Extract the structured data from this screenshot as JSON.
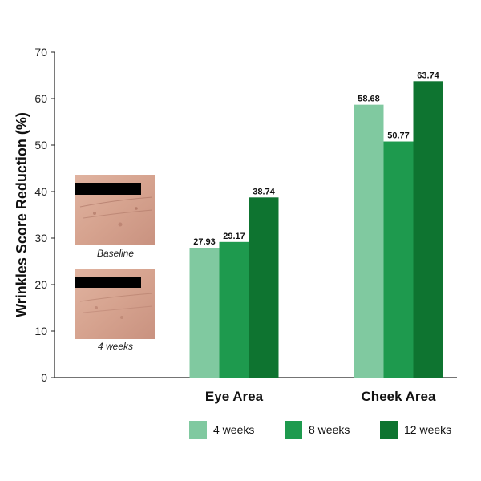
{
  "chart_data": {
    "type": "bar",
    "categories": [
      "Eye Area",
      "Cheek Area"
    ],
    "series": [
      {
        "name": "4 weeks",
        "values": [
          27.93,
          58.68
        ]
      },
      {
        "name": "8 weeks",
        "values": [
          29.17,
          50.77
        ]
      },
      {
        "name": "12 weeks",
        "values": [
          38.74,
          63.74
        ]
      }
    ],
    "data_labels": [
      [
        "27.93",
        "58.68"
      ],
      [
        "29.17",
        "50.77"
      ],
      [
        "38.74",
        "63.74"
      ]
    ],
    "ylabel": "Wrinkles Score Reduction (%)",
    "xlabel": "",
    "ylim": [
      0,
      70
    ],
    "yticks": [
      0,
      10,
      20,
      30,
      40,
      50,
      60,
      70
    ],
    "grid": false,
    "legend_position": "bottom"
  },
  "colors": {
    "series": [
      "#80c9a0",
      "#1e9a4e",
      "#0e7430"
    ],
    "axis": "#222222"
  },
  "photos": [
    {
      "caption": "Baseline"
    },
    {
      "caption": "4 weeks"
    }
  ]
}
